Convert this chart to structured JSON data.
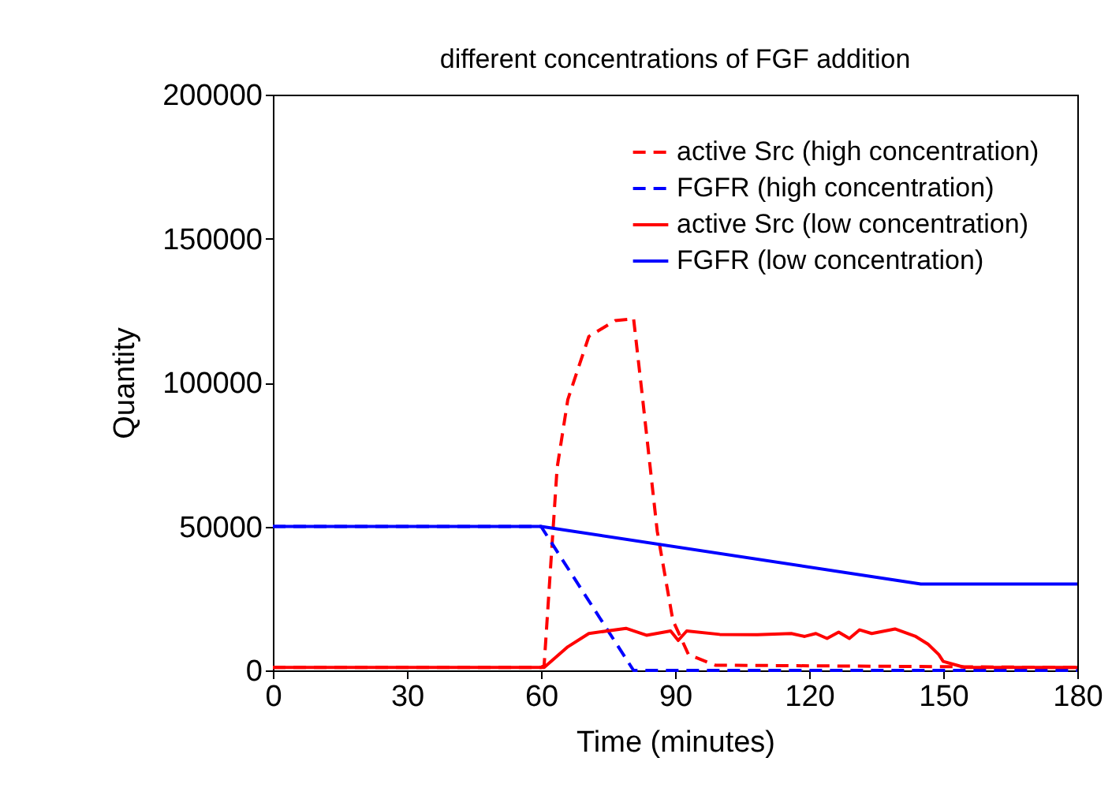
{
  "chart_data": {
    "type": "line",
    "title": "different concentrations of FGF addition",
    "xlabel": "Time (minutes)",
    "ylabel": "Quantity",
    "xlim": [
      0,
      180
    ],
    "ylim": [
      0,
      200000
    ],
    "xticks": [
      0,
      30,
      60,
      90,
      120,
      150,
      180
    ],
    "yticks": [
      0,
      50000,
      100000,
      150000,
      200000
    ],
    "grid": false,
    "legend": "top right",
    "marker": "none",
    "series": [
      {
        "name": "active Src (high concentration)",
        "color": "#ff0000",
        "line_style": "dashed",
        "x": [
          0,
          60,
          60.7,
          63.6,
          66,
          70.7,
          76.6,
          80,
          80.7,
          82.5,
          86,
          89.5,
          93,
          99,
          180
        ],
        "values": [
          1000,
          1000,
          1800,
          70300,
          94100,
          116000,
          121500,
          122000,
          122400,
          97700,
          48400,
          17400,
          5500,
          1800,
          1000
        ]
      },
      {
        "name": "FGFR (high concentration)",
        "color": "#0000ff",
        "line_style": "dashed",
        "x": [
          0,
          60,
          80.7,
          180
        ],
        "values": [
          50000,
          50000,
          0,
          0
        ]
      },
      {
        "name": "active Src (low concentration)",
        "color": "#ff0000",
        "line_style": "solid",
        "x": [
          0,
          60,
          60.7,
          66,
          70.7,
          79,
          83.6,
          89,
          90.7,
          92.6,
          100,
          108.4,
          116,
          119,
          121.5,
          124,
          126.6,
          129,
          131.3,
          134,
          139.2,
          143.7,
          146.6,
          149,
          150,
          153.7,
          155,
          180
        ],
        "values": [
          1000,
          1000,
          1000,
          8200,
          12800,
          14600,
          12200,
          13700,
          10400,
          13700,
          12500,
          12400,
          12800,
          11800,
          12800,
          11100,
          13300,
          11100,
          14100,
          12800,
          14400,
          11900,
          9100,
          5500,
          3100,
          1500,
          1000,
          1000
        ]
      },
      {
        "name": "FGFR (low concentration)",
        "color": "#0000ff",
        "line_style": "solid",
        "x": [
          0,
          60,
          145,
          180
        ],
        "values": [
          50000,
          50000,
          30000,
          30000
        ]
      }
    ]
  }
}
